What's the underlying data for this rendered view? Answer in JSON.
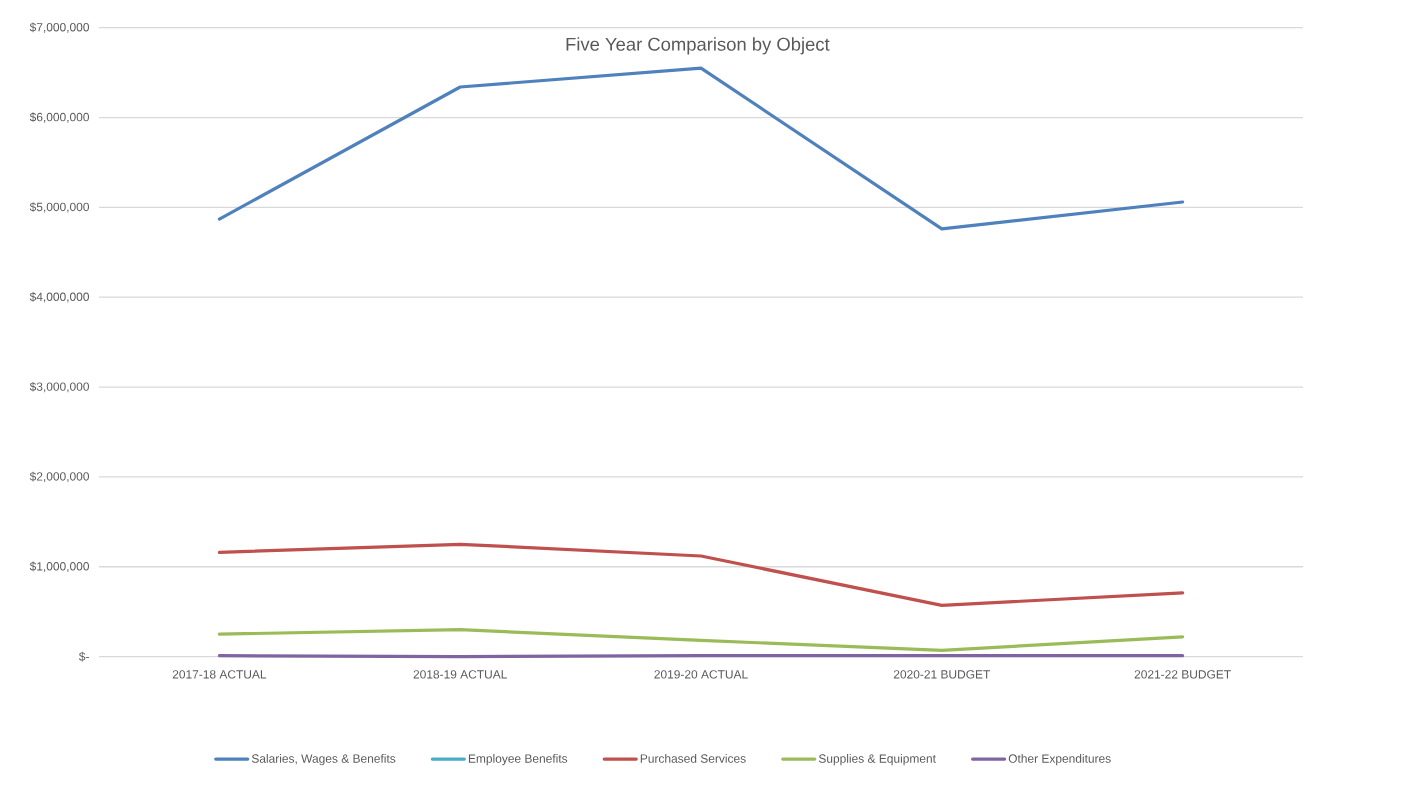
{
  "chart_data": {
    "type": "line",
    "title": "Five Year Comparison by Object",
    "categories": [
      "2017-18 ACTUAL",
      "2018-19 ACTUAL",
      "2019-20 ACTUAL",
      "2020-21 BUDGET",
      "2021-22 BUDGET"
    ],
    "series": [
      {
        "name": "Salaries, Wages & Benefits",
        "color": "#4f81bd",
        "values": [
          4870000,
          6340000,
          6550000,
          4760000,
          5060000
        ]
      },
      {
        "name": "Employee Benefits",
        "color": "#4bacc6",
        "values": [
          null,
          null,
          null,
          null,
          null
        ]
      },
      {
        "name": "Purchased Services",
        "color": "#c0504d",
        "values": [
          1160000,
          1250000,
          1120000,
          570000,
          710000
        ]
      },
      {
        "name": "Supplies & Equipment",
        "color": "#9bbb59",
        "values": [
          250000,
          300000,
          180000,
          70000,
          220000
        ]
      },
      {
        "name": "Other Expenditures",
        "color": "#8064a2",
        "values": [
          10000,
          0,
          10000,
          10000,
          10000
        ]
      }
    ],
    "ylim": [
      0,
      7000000
    ],
    "yticks": [
      {
        "value": 0,
        "label": "$-"
      },
      {
        "value": 1000000,
        "label": "$1,000,000"
      },
      {
        "value": 2000000,
        "label": "$2,000,000"
      },
      {
        "value": 3000000,
        "label": "$3,000,000"
      },
      {
        "value": 4000000,
        "label": "$4,000,000"
      },
      {
        "value": 5000000,
        "label": "$5,000,000"
      },
      {
        "value": 6000000,
        "label": "$6,000,000"
      },
      {
        "value": 7000000,
        "label": "$7,000,000"
      }
    ],
    "grid": "y",
    "legend": "bottom"
  }
}
